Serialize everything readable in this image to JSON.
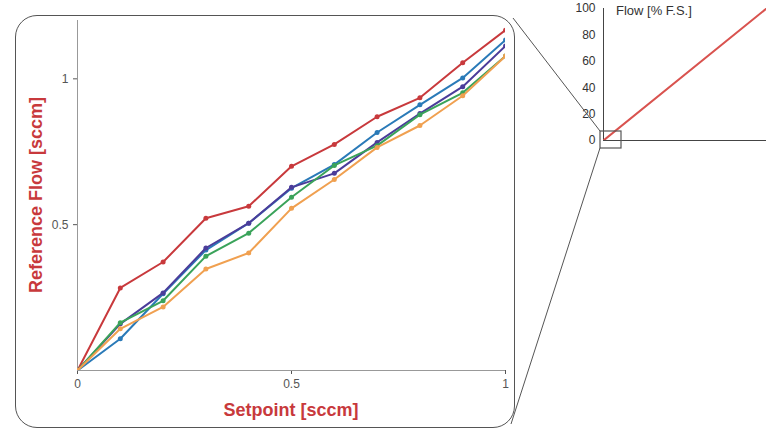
{
  "chart_data": [
    {
      "type": "line",
      "x": [
        0,
        0.1,
        0.2,
        0.3,
        0.4,
        0.5,
        0.6,
        0.7,
        0.8,
        0.9,
        1
      ],
      "series": [
        {
          "color": "#c8393c",
          "values": [
            0,
            0.283,
            0.372,
            0.522,
            0.563,
            0.7,
            0.775,
            0.87,
            0.935,
            1.055,
            1.167
          ]
        },
        {
          "color": "#2a7ab8",
          "values": [
            0,
            0.109,
            0.263,
            0.413,
            0.505,
            0.625,
            0.706,
            0.816,
            0.911,
            1.003,
            1.133
          ]
        },
        {
          "color": "#4b3c9a",
          "values": [
            0,
            0.16,
            0.266,
            0.42,
            0.505,
            0.628,
            0.676,
            0.782,
            0.881,
            0.973,
            1.113
          ]
        },
        {
          "color": "#3aa35a",
          "values": [
            0,
            0.164,
            0.239,
            0.392,
            0.471,
            0.594,
            0.703,
            0.771,
            0.877,
            0.952,
            1.078
          ]
        },
        {
          "color": "#f0a050",
          "values": [
            0,
            0.143,
            0.218,
            0.348,
            0.403,
            0.556,
            0.655,
            0.765,
            0.84,
            0.942,
            1.078
          ]
        }
      ],
      "xlim": [
        0,
        1
      ],
      "ylim": [
        0,
        1.2
      ],
      "xticks": [
        0,
        0.5,
        1
      ],
      "yticks": [
        0.5,
        1
      ],
      "x_label": "Setpoint [sccm]",
      "y_label": "Reference Flow [sccm]",
      "marker": "circle"
    },
    {
      "type": "line",
      "x": [
        0,
        100
      ],
      "series": [
        {
          "color": "#d9534f",
          "values": [
            0,
            100
          ]
        }
      ],
      "xlim": [
        0,
        100
      ],
      "ylim": [
        0,
        100
      ],
      "yticks": [
        0,
        20,
        40,
        60,
        80,
        100
      ],
      "y_label": "Flow [% F.S.]",
      "tick_labels": "y"
    }
  ]
}
